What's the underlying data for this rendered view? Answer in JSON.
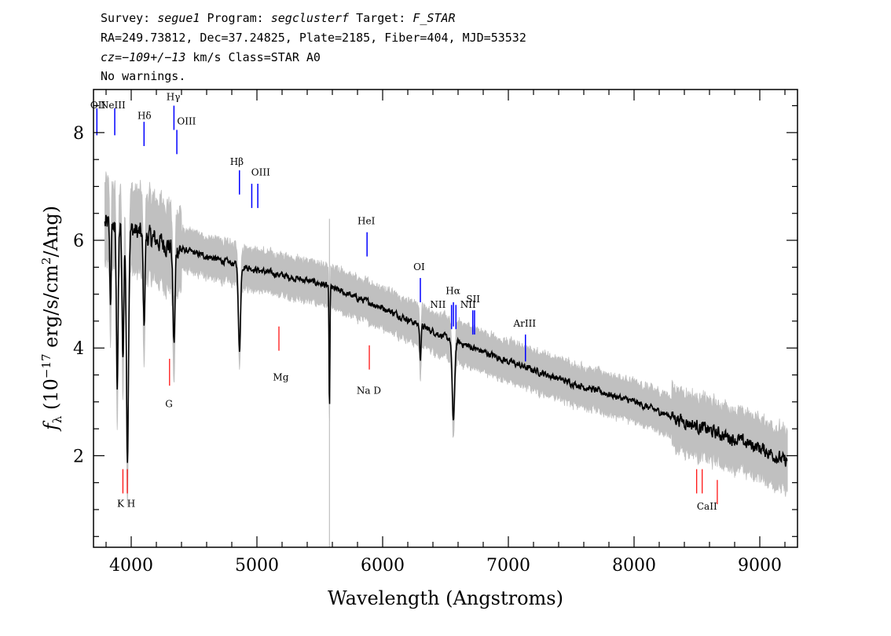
{
  "header": {
    "line1": [
      "Survey: ",
      "segue1",
      " Program: ",
      "segclusterf",
      " Target: ",
      "F_STAR"
    ],
    "line2": "RA=249.73812, Dec=37.24825, Plate=2185, Fiber=404, MJD=53532",
    "line3": [
      "cz=",
      "−109+/−13",
      " km/s Class=STAR A0"
    ],
    "line4": "No warnings."
  },
  "chart_data": {
    "type": "line",
    "xlabel": "Wavelength (Angstroms)",
    "ylabel_parts": [
      "f",
      "λ",
      " (10",
      "−17",
      " erg/s/cm",
      "2",
      "/Ang)"
    ],
    "xlim": [
      3700,
      9300
    ],
    "ylim": [
      0.3,
      8.8
    ],
    "xticks": [
      4000,
      5000,
      6000,
      7000,
      8000,
      9000
    ],
    "yticks": [
      2,
      4,
      6,
      8
    ],
    "grid": false,
    "colors": {
      "flux": "#000000",
      "error_band": "#c0c0c0",
      "emission_marker": "#0000ff",
      "absorption_marker": "#ff0000"
    },
    "continuum": [
      [
        3800,
        6.3
      ],
      [
        4000,
        6.2
      ],
      [
        4300,
        5.9
      ],
      [
        4600,
        5.7
      ],
      [
        5000,
        5.45
      ],
      [
        5500,
        5.2
      ],
      [
        6000,
        4.75
      ],
      [
        6500,
        4.2
      ],
      [
        7000,
        3.75
      ],
      [
        7500,
        3.35
      ],
      [
        8000,
        3.0
      ],
      [
        8500,
        2.55
      ],
      [
        9000,
        2.15
      ],
      [
        9200,
        1.9
      ]
    ],
    "absorption_features": [
      {
        "x": 3835,
        "depth": 1.4,
        "width": 8
      },
      {
        "x": 3889,
        "depth": 2.9,
        "width": 10
      },
      {
        "x": 3934,
        "depth": 2.4,
        "width": 10
      },
      {
        "x": 3970,
        "depth": 4.2,
        "width": 12
      },
      {
        "x": 4102,
        "depth": 1.6,
        "width": 10
      },
      {
        "x": 4340,
        "depth": 1.8,
        "width": 12
      },
      {
        "x": 4861,
        "depth": 1.6,
        "width": 12
      },
      {
        "x": 5577,
        "depth": 2.3,
        "width": 5
      },
      {
        "x": 6300,
        "depth": 0.6,
        "width": 8
      },
      {
        "x": 6563,
        "depth": 1.5,
        "width": 14
      }
    ],
    "emission_lines": [
      {
        "label": "OII",
        "x": 3727,
        "y0": 7.95,
        "y1": 8.45
      },
      {
        "label": "NeIII",
        "x": 3869,
        "y0": 7.95,
        "y1": 8.45
      },
      {
        "label": "Hδ",
        "x": 4102,
        "y0": 7.75,
        "y1": 8.2
      },
      {
        "label": "Hγ",
        "x": 4340,
        "y0": 8.05,
        "y1": 8.5
      },
      {
        "label": "OIII",
        "x": 4363,
        "y0": 7.6,
        "y1": 8.05
      },
      {
        "label": "Hβ",
        "x": 4861,
        "y0": 6.85,
        "y1": 7.3
      },
      {
        "label": "OIII",
        "x": 4959,
        "y0": 6.6,
        "y1": 7.05
      },
      {
        "label": "OIII",
        "x": 5007,
        "y0": 6.6,
        "y1": 7.05
      },
      {
        "label": "HeI",
        "x": 5876,
        "y0": 5.7,
        "y1": 6.15
      },
      {
        "label": "OI",
        "x": 6300,
        "y0": 4.85,
        "y1": 5.3
      },
      {
        "label": "NII",
        "x": 6548,
        "y0": 4.35,
        "y1": 4.8
      },
      {
        "label": "Hα",
        "x": 6563,
        "y0": 4.4,
        "y1": 4.85
      },
      {
        "label": "NII",
        "x": 6583,
        "y0": 4.35,
        "y1": 4.8
      },
      {
        "label": "SII",
        "x": 6717,
        "y0": 4.25,
        "y1": 4.7
      },
      {
        "label": "SII",
        "x": 6731,
        "y0": 4.25,
        "y1": 4.7
      },
      {
        "label": "ArIII",
        "x": 7136,
        "y0": 3.75,
        "y1": 4.25
      }
    ],
    "emission_labels": [
      {
        "text": "OII",
        "x": 3735,
        "y": 8.45
      },
      {
        "text": "NeIII",
        "x": 3855,
        "y": 8.45
      },
      {
        "text": "Hδ",
        "x": 4105,
        "y": 8.25
      },
      {
        "text": "Hγ",
        "x": 4335,
        "y": 8.6
      },
      {
        "text": "OIII",
        "x": 4440,
        "y": 8.15
      },
      {
        "text": "Hβ",
        "x": 4840,
        "y": 7.4
      },
      {
        "text": "OIII",
        "x": 5030,
        "y": 7.2
      },
      {
        "text": "HeI",
        "x": 5870,
        "y": 6.3
      },
      {
        "text": "OI",
        "x": 6290,
        "y": 5.45
      },
      {
        "text": "NII",
        "x": 6440,
        "y": 4.75
      },
      {
        "text": "Hα",
        "x": 6560,
        "y": 5.0
      },
      {
        "text": "NII",
        "x": 6680,
        "y": 4.75
      },
      {
        "text": "SII",
        "x": 6720,
        "y": 4.85
      },
      {
        "text": "ArIII",
        "x": 7130,
        "y": 4.4
      }
    ],
    "absorption_lines": [
      {
        "label": "K",
        "x": 3934,
        "y0": 1.3,
        "y1": 1.75
      },
      {
        "label": "H",
        "x": 3969,
        "y0": 1.3,
        "y1": 1.75
      },
      {
        "label": "G",
        "x": 4305,
        "y0": 3.3,
        "y1": 3.8
      },
      {
        "label": "Mg",
        "x": 5175,
        "y0": 3.95,
        "y1": 4.4
      },
      {
        "label": "Na",
        "x": 5894,
        "y0": 3.6,
        "y1": 4.05
      },
      {
        "label": "CaII",
        "x": 8498,
        "y0": 1.3,
        "y1": 1.75
      },
      {
        "label": "CaII",
        "x": 8542,
        "y0": 1.3,
        "y1": 1.75
      },
      {
        "label": "CaII",
        "x": 8662,
        "y0": 1.1,
        "y1": 1.55
      }
    ],
    "absorption_labels": [
      {
        "text": "K H",
        "x": 3960,
        "y": 1.05
      },
      {
        "text": "G",
        "x": 4300,
        "y": 2.9
      },
      {
        "text": "Mg",
        "x": 5190,
        "y": 3.4
      },
      {
        "text": "Na  D",
        "x": 5890,
        "y": 3.15
      },
      {
        "text": "CaII",
        "x": 8580,
        "y": 1.0
      }
    ]
  }
}
